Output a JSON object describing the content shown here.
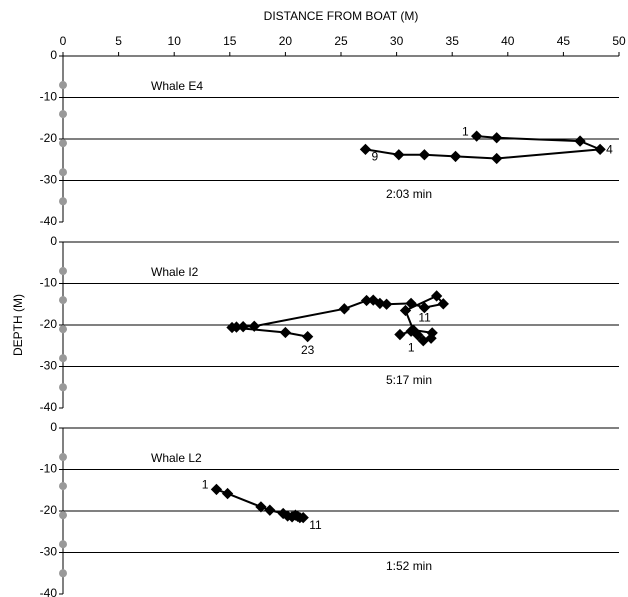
{
  "chart_data": [
    {
      "type": "line",
      "title": "Whale E4",
      "annotation": "2:03 min",
      "xlabel": "DISTANCE FROM BOAT (M)",
      "xlim": [
        0,
        50
      ],
      "xticks": [
        0,
        5,
        10,
        15,
        20,
        25,
        30,
        35,
        40,
        45,
        50
      ],
      "ylim": [
        -40,
        0
      ],
      "yticks": [
        0,
        -10,
        -20,
        -30,
        -40
      ],
      "grid": true,
      "series": [
        {
          "color": "#000000",
          "x": [
            37.2,
            39,
            46.5,
            48.3,
            39,
            35.3,
            32.5,
            30.2,
            27.2
          ],
          "values": [
            -19.3,
            -19.7,
            -20.5,
            -22.5,
            -24.7,
            -24.2,
            -23.8,
            -23.8,
            -22.5
          ],
          "point_labels": [
            "1",
            null,
            null,
            "4",
            null,
            null,
            null,
            null,
            "9"
          ]
        },
        {
          "color": "#999999",
          "x": [
            0,
            0,
            0,
            0,
            0
          ],
          "values": [
            -7,
            -14,
            -21,
            -28,
            -35
          ]
        }
      ]
    },
    {
      "type": "line",
      "title": "Whale I2",
      "annotation": "5:17 min",
      "ylabel": "DEPTH (M)",
      "xlim": [
        0,
        50
      ],
      "ylim": [
        -40,
        0
      ],
      "yticks": [
        0,
        -10,
        -20,
        -30,
        -40
      ],
      "grid": true,
      "series": [
        {
          "color": "#000000",
          "x": [
            30.3,
            31.3,
            31.9,
            32.4,
            33.1,
            33.2,
            31.5,
            30.8,
            33.6,
            34.2,
            32.5,
            31.3,
            29.1,
            28.5,
            27.9,
            27.3,
            25.3,
            17.2,
            16.2,
            15.6,
            15.2,
            20,
            22
          ],
          "values": [
            -22.3,
            -21.5,
            -22.4,
            -23.8,
            -23.2,
            -21.9,
            -21.2,
            -16.5,
            -13,
            -14.9,
            -15.8,
            -14.8,
            -15,
            -14.8,
            -14,
            -14.1,
            -16.1,
            -20.3,
            -20.4,
            -20.5,
            -20.6,
            -21.8,
            -22.8
          ],
          "point_labels": [
            "1",
            null,
            null,
            null,
            null,
            null,
            null,
            null,
            null,
            null,
            "11",
            null,
            null,
            null,
            null,
            null,
            null,
            null,
            null,
            null,
            null,
            null,
            "23"
          ]
        },
        {
          "color": "#999999",
          "x": [
            0,
            0,
            0,
            0,
            0
          ],
          "values": [
            -7,
            -14,
            -21,
            -28,
            -35
          ]
        }
      ]
    },
    {
      "type": "line",
      "title": "Whale L2",
      "annotation": "1:52 min",
      "xlim": [
        0,
        50
      ],
      "ylim": [
        -40,
        0
      ],
      "yticks": [
        0,
        -10,
        -20,
        -30,
        -40
      ],
      "grid": true,
      "series": [
        {
          "color": "#000000",
          "x": [
            13.8,
            14.8,
            17.8,
            18.6,
            19.8,
            20.2,
            20.6,
            20.9,
            21.1,
            21.3,
            21.6
          ],
          "values": [
            -14.8,
            -15.8,
            -19,
            -19.8,
            -20.6,
            -21.2,
            -21.4,
            -21,
            -21.3,
            -21.6,
            -21.6
          ],
          "point_labels": [
            "1",
            null,
            null,
            null,
            null,
            null,
            null,
            null,
            null,
            null,
            "11"
          ]
        },
        {
          "color": "#999999",
          "x": [
            0,
            0,
            0,
            0,
            0
          ],
          "values": [
            -7,
            -14,
            -21,
            -28,
            -35
          ]
        }
      ]
    }
  ]
}
